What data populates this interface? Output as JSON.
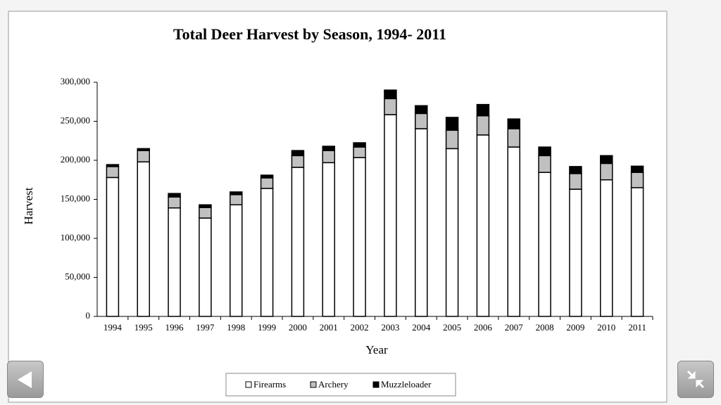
{
  "chart_data": {
    "type": "stacked_bar",
    "title": "Total Deer Harvest by Season, 1994- 2011",
    "x_label": "Year",
    "y_label": "Harvest",
    "categories": [
      "1994",
      "1995",
      "1996",
      "1997",
      "1998",
      "1999",
      "2000",
      "2001",
      "2002",
      "2003",
      "2004",
      "2005",
      "2006",
      "2007",
      "2008",
      "2009",
      "2010",
      "2011"
    ],
    "series": [
      {
        "name": "Firearms",
        "color": "#ffffff",
        "values": [
          178000,
          198000,
          139000,
          126000,
          143000,
          164000,
          191000,
          197000,
          203500,
          258500,
          240500,
          215000,
          232500,
          217000,
          184500,
          163000,
          175000,
          165000
        ]
      },
      {
        "name": "Archery",
        "color": "#c0c0c0",
        "values": [
          14000,
          14500,
          14000,
          13500,
          13000,
          13500,
          15000,
          15500,
          13500,
          20500,
          19500,
          23500,
          24500,
          23500,
          21500,
          20000,
          21000,
          19500
        ]
      },
      {
        "name": "Muzzleloader",
        "color": "#000000",
        "values": [
          2500,
          2500,
          4500,
          3500,
          3500,
          3500,
          6500,
          5500,
          5500,
          11000,
          10000,
          16500,
          14500,
          12500,
          11000,
          9000,
          10000,
          8000
        ]
      }
    ],
    "ylim": [
      0,
      300000
    ],
    "yticks": [
      0,
      {
        "value": 50000,
        "label": "50,000"
      },
      {
        "value": 100000,
        "label": "100,000"
      },
      {
        "value": 150000,
        "label": "150,000"
      },
      {
        "value": 200000,
        "label": "200,000"
      },
      {
        "value": 250000,
        "label": "250,000"
      },
      {
        "value": 300000,
        "label": "300,000"
      }
    ],
    "legend": "bottom"
  }
}
